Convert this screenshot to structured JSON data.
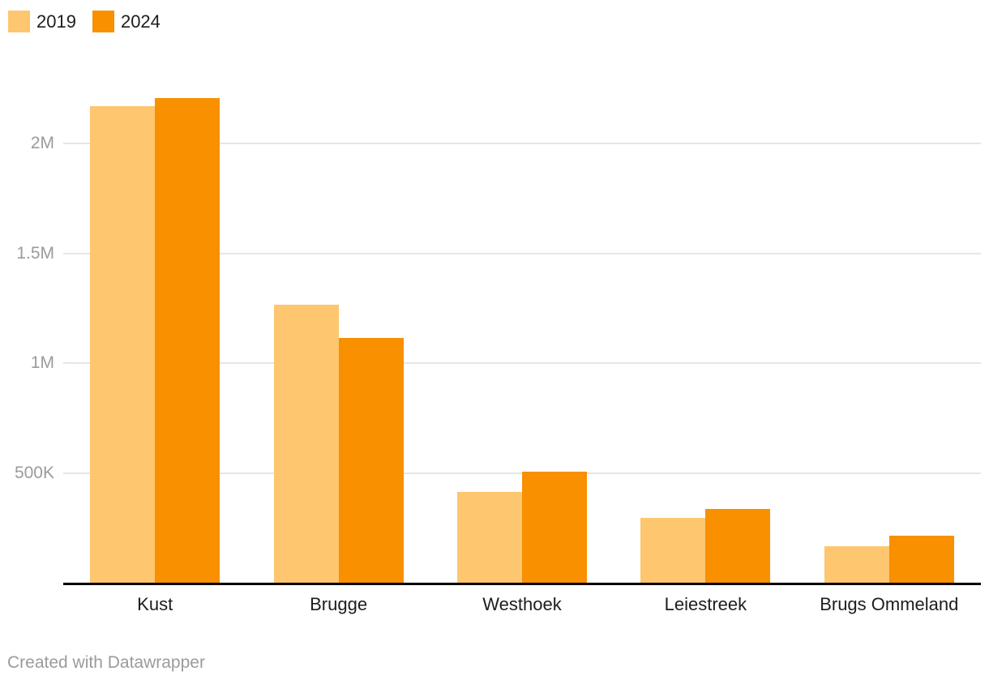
{
  "footer": {
    "text": "Created with Datawrapper"
  },
  "colors": {
    "background": "#ffffff",
    "gridline": "#e6e6e6",
    "baseline": "#000000",
    "ytick_label": "#9b9b9b",
    "category_label": "#1d1d1d",
    "footer_text": "#9b9b9b",
    "series_2019": "#fdc66f",
    "series_2024": "#f89000"
  },
  "chart_data": {
    "type": "bar",
    "title": "",
    "xlabel": "",
    "ylabel": "",
    "categories": [
      "Kust",
      "Brugge",
      "Westhoek",
      "Leiestreek",
      "Brugs Ommeland"
    ],
    "series": [
      {
        "name": "2019",
        "color": "#fdc66f",
        "values": [
          2170000,
          1265000,
          415000,
          295000,
          165000
        ]
      },
      {
        "name": "2024",
        "color": "#f89000",
        "values": [
          2210000,
          1115000,
          505000,
          335000,
          215000
        ]
      }
    ],
    "yticks": [
      {
        "value": 500000,
        "label": "500K"
      },
      {
        "value": 1000000,
        "label": "1M"
      },
      {
        "value": 1500000,
        "label": "1.5M"
      },
      {
        "value": 2000000,
        "label": "2M"
      }
    ],
    "ylim": [
      0,
      2250000
    ],
    "grid": true,
    "legend_position": "top-left"
  }
}
